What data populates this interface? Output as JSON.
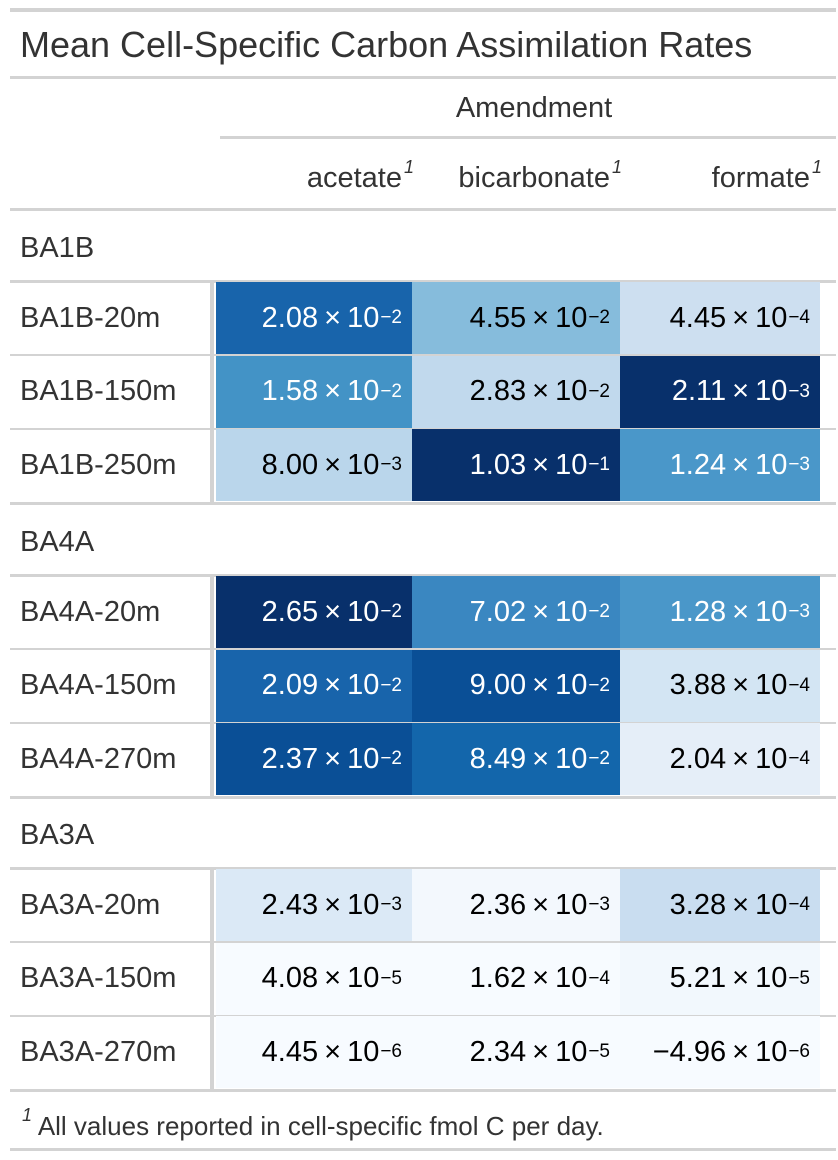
{
  "chart_data": {
    "type": "table",
    "title": "Mean Cell-Specific Carbon Assimilation Rates",
    "spanner": "Amendment",
    "columns": [
      {
        "key": "acetate",
        "label": "acetate",
        "footnote_mark": "1"
      },
      {
        "key": "bicarbonate",
        "label": "bicarbonate",
        "footnote_mark": "1"
      },
      {
        "key": "formate",
        "label": "formate",
        "footnote_mark": "1"
      }
    ],
    "groups": [
      {
        "label": "BA1B",
        "rows": [
          {
            "label": "BA1B-20m",
            "values": [
              0.0208,
              0.0455,
              0.000445
            ],
            "display": [
              [
                "2.08",
                "−2"
              ],
              [
                "4.55",
                "−2"
              ],
              [
                "4.45",
                "−4"
              ]
            ]
          },
          {
            "label": "BA1B-150m",
            "values": [
              0.0158,
              0.0283,
              0.00211
            ],
            "display": [
              [
                "1.58",
                "−2"
              ],
              [
                "2.83",
                "−2"
              ],
              [
                "2.11",
                "−3"
              ]
            ]
          },
          {
            "label": "BA1B-250m",
            "values": [
              0.008,
              0.103,
              0.00124
            ],
            "display": [
              [
                "8.00",
                "−3"
              ],
              [
                "1.03",
                "−1"
              ],
              [
                "1.24",
                "−3"
              ]
            ]
          }
        ]
      },
      {
        "label": "BA4A",
        "rows": [
          {
            "label": "BA4A-20m",
            "values": [
              0.0265,
              0.0702,
              0.00128
            ],
            "display": [
              [
                "2.65",
                "−2"
              ],
              [
                "7.02",
                "−2"
              ],
              [
                "1.28",
                "−3"
              ]
            ]
          },
          {
            "label": "BA4A-150m",
            "values": [
              0.0209,
              0.09,
              0.000388
            ],
            "display": [
              [
                "2.09",
                "−2"
              ],
              [
                "9.00",
                "−2"
              ],
              [
                "3.88",
                "−4"
              ]
            ]
          },
          {
            "label": "BA4A-270m",
            "values": [
              0.0237,
              0.0849,
              0.000204
            ],
            "display": [
              [
                "2.37",
                "−2"
              ],
              [
                "8.49",
                "−2"
              ],
              [
                "2.04",
                "−4"
              ]
            ]
          }
        ]
      },
      {
        "label": "BA3A",
        "rows": [
          {
            "label": "BA3A-20m",
            "values": [
              0.00243,
              0.00236,
              0.000328
            ],
            "display": [
              [
                "2.43",
                "−3"
              ],
              [
                "2.36",
                "−3"
              ],
              [
                "3.28",
                "−4"
              ]
            ]
          },
          {
            "label": "BA3A-150m",
            "values": [
              4.08e-05,
              0.000162,
              5.21e-05
            ],
            "display": [
              [
                "4.08",
                "−5"
              ],
              [
                "1.62",
                "−4"
              ],
              [
                "5.21",
                "−5"
              ]
            ]
          },
          {
            "label": "BA3A-270m",
            "values": [
              4.45e-06,
              2.34e-05,
              -4.96e-06
            ],
            "display": [
              [
                "4.45",
                "−6"
              ],
              [
                "2.34",
                "−5"
              ],
              [
                "−4.96",
                "−6"
              ]
            ]
          }
        ]
      }
    ],
    "number_format": {
      "times": "×",
      "base": "10"
    },
    "colors": {
      "palette": "Blues",
      "by_column": {
        "acetate": [
          "#1864ab",
          "#4393c6",
          "#bad6eb",
          "#08306b",
          "#1864ab",
          "#0a4f96",
          "#dbe9f6",
          "#f7fbff",
          "#f7fbff"
        ],
        "bicarbonate": [
          "#86bcdc",
          "#c1d9ed",
          "#08306b",
          "#3a87c1",
          "#0a4f96",
          "#1366ab",
          "#f3f8fd",
          "#f7fbff",
          "#f7fbff"
        ],
        "formate": [
          "#cddff0",
          "#08306b",
          "#4a97c9",
          "#4a97c9",
          "#d3e5f3",
          "#e5eef8",
          "#c9ddf0",
          "#f2f8fd",
          "#f7fbff"
        ]
      },
      "dark_text": "#000000",
      "light_text": "#ffffff"
    },
    "footnote": {
      "mark": "1",
      "text": "All values reported in cell-specific fmol C per day."
    }
  }
}
